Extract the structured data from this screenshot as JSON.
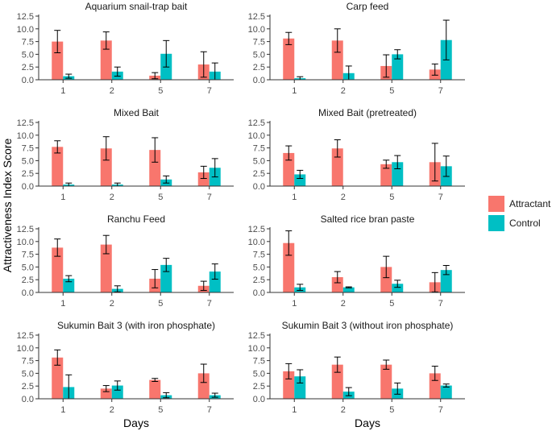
{
  "colors": {
    "Attractant": "#F8766D",
    "Control": "#00BFC4",
    "axis": "#333333",
    "tick_text": "#4d4d4d"
  },
  "chart_data": {
    "type": "bar",
    "ylabel": "Attractiveness Index Score",
    "xlabel": "Days",
    "ylim": [
      0,
      12.5
    ],
    "yticks": [
      0.0,
      2.5,
      5.0,
      7.5,
      10.0,
      12.5
    ],
    "ytick_labels": [
      "0.0",
      "2.5",
      "5.0",
      "7.5",
      "10.0",
      "12.5"
    ],
    "categories": [
      "1",
      "2",
      "5",
      "7"
    ],
    "legend": [
      "Attractant",
      "Control"
    ],
    "panels": [
      {
        "title": "Aquarium snail-trap bait",
        "series": [
          {
            "name": "Attractant",
            "values": [
              7.5,
              7.7,
              0.8,
              3.0
            ],
            "errors": [
              2.2,
              1.7,
              0.6,
              2.5
            ]
          },
          {
            "name": "Control",
            "values": [
              0.7,
              1.6,
              5.1,
              1.6
            ],
            "errors": [
              0.4,
              0.9,
              2.6,
              1.7
            ]
          }
        ]
      },
      {
        "title": "Carp feed",
        "series": [
          {
            "name": "Attractant",
            "values": [
              8.1,
              7.7,
              2.7,
              2.0
            ],
            "errors": [
              1.2,
              2.3,
              2.2,
              1.1
            ]
          },
          {
            "name": "Control",
            "values": [
              0.3,
              1.3,
              5.0,
              7.8
            ],
            "errors": [
              0.3,
              1.4,
              0.9,
              3.9
            ]
          }
        ]
      },
      {
        "title": "Mixed Bait",
        "series": [
          {
            "name": "Attractant",
            "values": [
              7.7,
              7.4,
              7.1,
              2.7
            ],
            "errors": [
              1.2,
              2.3,
              2.4,
              1.2
            ]
          },
          {
            "name": "Control",
            "values": [
              0.3,
              0.3,
              1.3,
              3.6
            ],
            "errors": [
              0.3,
              0.3,
              0.7,
              1.8
            ]
          }
        ]
      },
      {
        "title": "Mixed Bait (pretreated)",
        "series": [
          {
            "name": "Attractant",
            "values": [
              6.5,
              7.4,
              4.3,
              4.7
            ],
            "errors": [
              1.4,
              1.7,
              0.8,
              3.7
            ]
          },
          {
            "name": "Control",
            "values": [
              2.3,
              0,
              4.7,
              3.9
            ],
            "errors": [
              0.8,
              0,
              1.3,
              2.0
            ]
          }
        ]
      },
      {
        "title": "Ranchu Feed",
        "series": [
          {
            "name": "Attractant",
            "values": [
              8.8,
              9.4,
              2.7,
              1.3
            ],
            "errors": [
              1.7,
              1.8,
              1.8,
              0.9
            ]
          },
          {
            "name": "Control",
            "values": [
              2.7,
              0.7,
              5.4,
              4.1
            ],
            "errors": [
              0.6,
              0.6,
              1.3,
              1.5
            ]
          }
        ]
      },
      {
        "title": "Salted rice bran paste",
        "series": [
          {
            "name": "Attractant",
            "values": [
              9.7,
              3.0,
              5.0,
              2.0
            ],
            "errors": [
              2.4,
              1.1,
              2.1,
              1.9
            ]
          },
          {
            "name": "Control",
            "values": [
              1.0,
              1.0,
              1.7,
              4.4
            ],
            "errors": [
              0.6,
              0.1,
              0.7,
              0.9
            ]
          }
        ]
      },
      {
        "title": "Sukumin Bait 3 (with iron phosphate)",
        "series": [
          {
            "name": "Attractant",
            "values": [
              8.1,
              2.0,
              3.7,
              5.0
            ],
            "errors": [
              1.5,
              0.6,
              0.3,
              1.8
            ]
          },
          {
            "name": "Control",
            "values": [
              2.3,
              2.6,
              0.7,
              0.7
            ],
            "errors": [
              2.4,
              0.9,
              0.5,
              0.4
            ]
          }
        ]
      },
      {
        "title": "Sukumin Bait 3 (without iron phosphate)",
        "series": [
          {
            "name": "Attractant",
            "values": [
              5.4,
              6.7,
              6.7,
              5.0
            ],
            "errors": [
              1.5,
              1.5,
              0.9,
              1.4
            ]
          },
          {
            "name": "Control",
            "values": [
              4.4,
              1.4,
              2.0,
              2.6
            ],
            "errors": [
              1.3,
              0.8,
              1.1,
              0.3
            ]
          }
        ]
      }
    ]
  }
}
